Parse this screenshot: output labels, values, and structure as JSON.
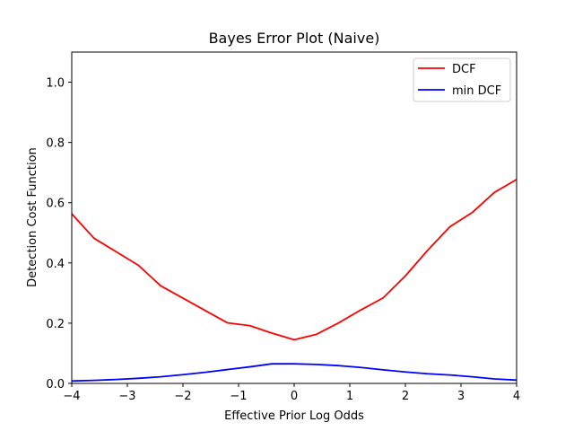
{
  "chart_data": {
    "type": "line",
    "title": "Bayes Error Plot (Naive)",
    "xlabel": "Effective Prior Log Odds",
    "ylabel": "Detection Cost Function",
    "xlim": [
      -4,
      4
    ],
    "ylim": [
      0,
      1.1
    ],
    "x_ticks": [
      -4,
      -3,
      -2,
      -1,
      0,
      1,
      2,
      3,
      4
    ],
    "x_tick_labels": [
      "−4",
      "−3",
      "−2",
      "−1",
      "0",
      "1",
      "2",
      "3",
      "4"
    ],
    "y_ticks": [
      0.0,
      0.2,
      0.4,
      0.6,
      0.8,
      1.0
    ],
    "y_tick_labels": [
      "0.0",
      "0.2",
      "0.4",
      "0.6",
      "0.8",
      "1.0"
    ],
    "grid": false,
    "legend_position": "top-right",
    "x": [
      -4,
      -3.6,
      -3.2,
      -2.8,
      -2.4,
      -2.0,
      -1.6,
      -1.2,
      -0.8,
      -0.4,
      0,
      0.4,
      0.8,
      1.2,
      1.6,
      2.0,
      2.4,
      2.8,
      3.2,
      3.6,
      4.0
    ],
    "series": [
      {
        "name": "DCF",
        "color": "#ff0000",
        "values": [
          0.563,
          0.482,
          0.437,
          0.392,
          0.324,
          0.283,
          0.242,
          0.201,
          0.192,
          0.167,
          0.145,
          0.163,
          0.201,
          0.244,
          0.284,
          0.357,
          0.442,
          0.52,
          0.567,
          0.634,
          0.677
        ]
      },
      {
        "name": "min DCF",
        "color": "#0000ff",
        "values": [
          0.008,
          0.01,
          0.013,
          0.017,
          0.022,
          0.029,
          0.037,
          0.046,
          0.055,
          0.065,
          0.065,
          0.063,
          0.059,
          0.053,
          0.045,
          0.038,
          0.032,
          0.028,
          0.022,
          0.015,
          0.011
        ]
      }
    ]
  }
}
